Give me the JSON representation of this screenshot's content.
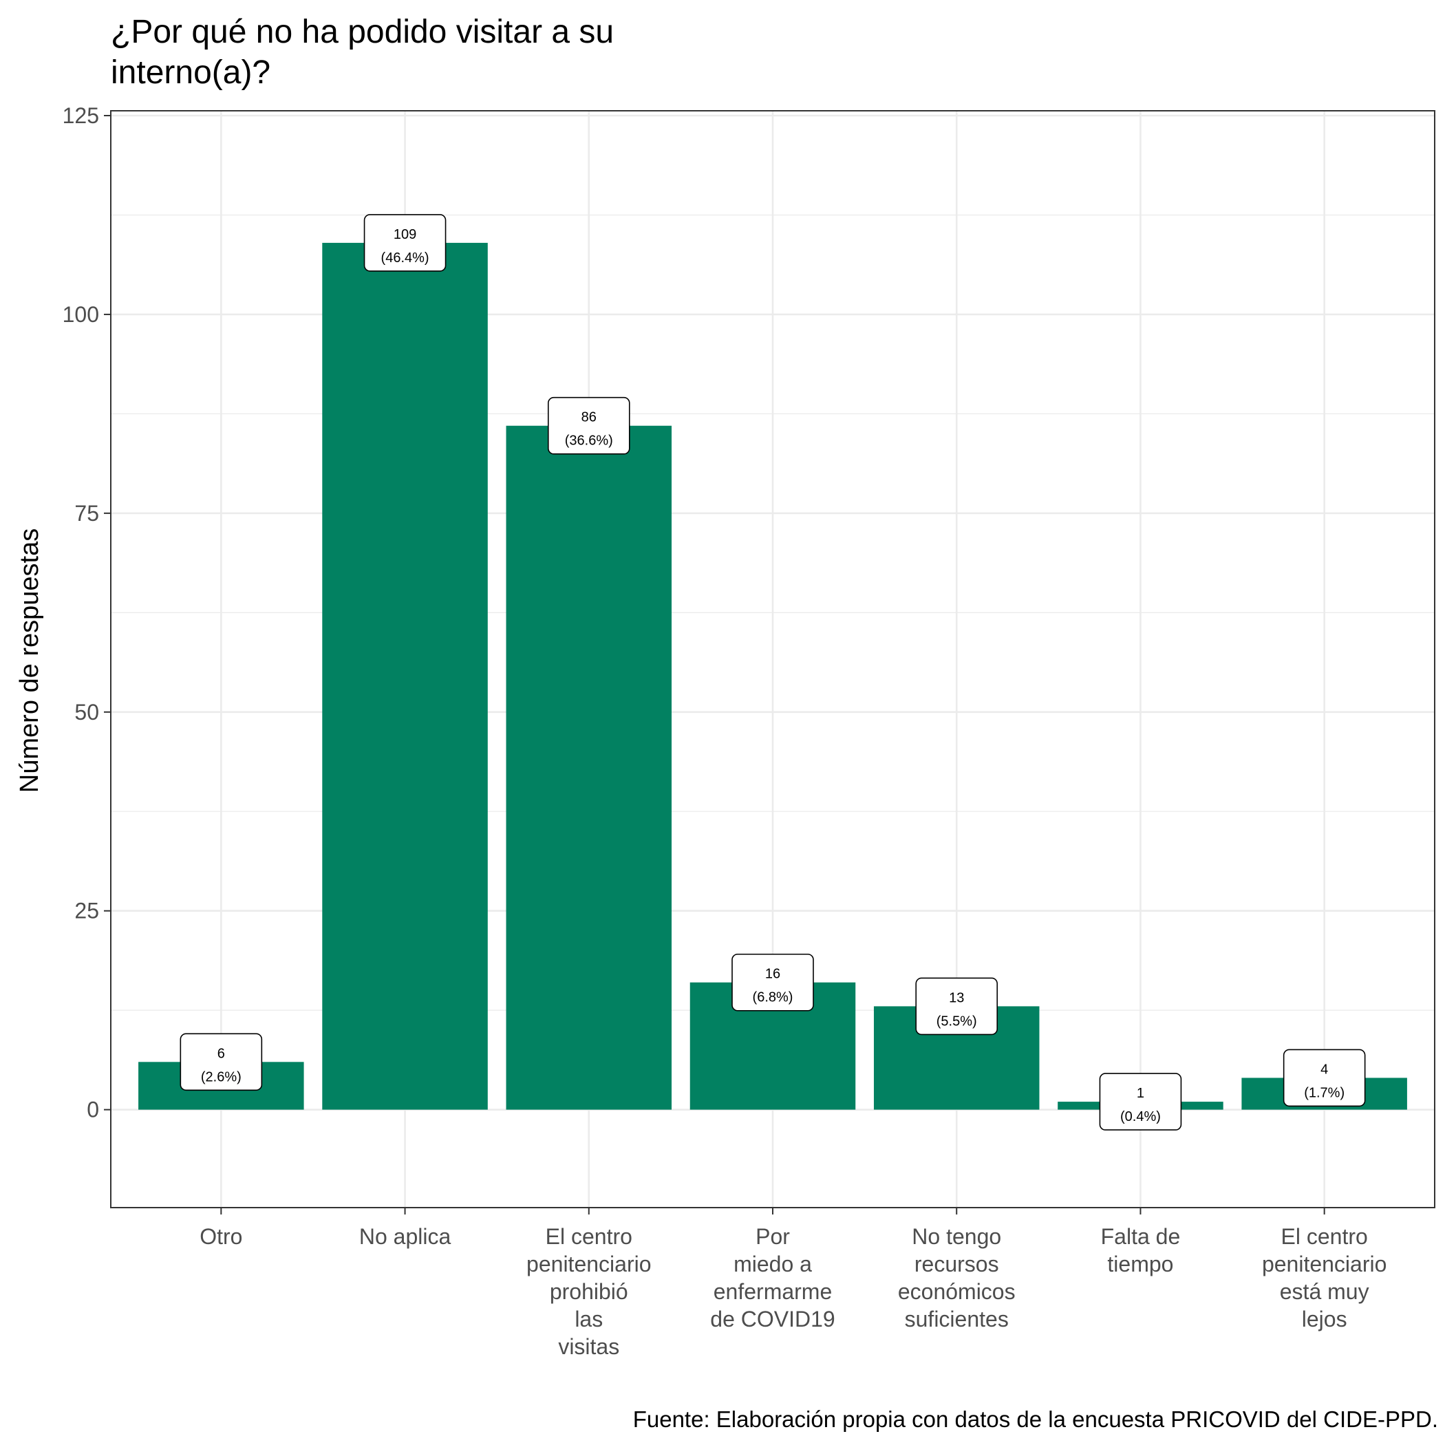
{
  "chart_data": {
    "type": "bar",
    "title": [
      "¿Por qué no ha podido visitar a su",
      "interno(a)?"
    ],
    "xlabel": "",
    "ylabel": "Número de respuestas",
    "caption": "Fuente: Elaboración propia con datos de la encuesta PRICOVID del CIDE-PPD.",
    "ylim": [
      -6,
      125
    ],
    "yticks": [
      0,
      25,
      50,
      75,
      100,
      125
    ],
    "grid": true,
    "bar_color": "#028161",
    "categories": [
      [
        "Otro"
      ],
      [
        "No aplica"
      ],
      [
        "El centro",
        "penitenciario",
        "prohibió",
        "las",
        "visitas"
      ],
      [
        "Por",
        "miedo a",
        "enfermarme",
        "de COVID19"
      ],
      [
        "No tengo",
        "recursos",
        "económicos",
        "suficientes"
      ],
      [
        "Falta de",
        "tiempo"
      ],
      [
        "El centro",
        "penitenciario",
        "está muy",
        "lejos"
      ]
    ],
    "values": [
      6,
      109,
      86,
      16,
      13,
      1,
      4
    ],
    "data_labels": [
      [
        "6",
        "(2.6%)"
      ],
      [
        "109",
        "(46.4%)"
      ],
      [
        "86",
        "(36.6%)"
      ],
      [
        "16",
        "(6.8%)"
      ],
      [
        "13",
        "(5.5%)"
      ],
      [
        "1",
        "(0.4%)"
      ],
      [
        "4",
        "(1.7%)"
      ]
    ]
  }
}
